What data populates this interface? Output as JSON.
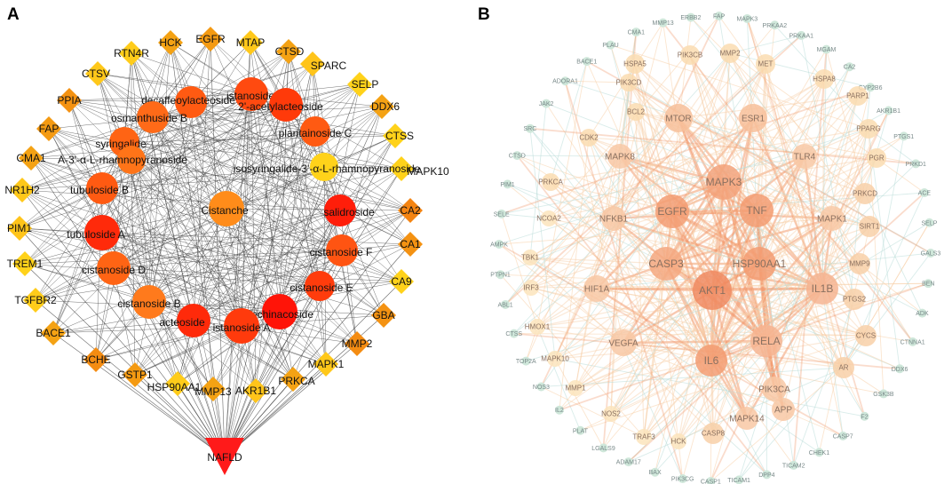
{
  "figure": {
    "panel_a_label": "A",
    "panel_b_label": "B"
  },
  "panel_a": {
    "compounds": [
      {
        "name": "istanoside C",
        "color": "#ff4a10"
      },
      {
        "name": "decaffeoylacteoside",
        "color": "#ff5a12"
      },
      {
        "name": "2'-acetylacteoside",
        "color": "#ff3a0a"
      },
      {
        "name": "osmanthuside B",
        "color": "#ff6a18"
      },
      {
        "name": "plantainoside C",
        "color": "#ff5a12"
      },
      {
        "name": "syringalide",
        "color": "#ff6414"
      },
      {
        "name": "A-3'-α-L-rhamnopyranoside",
        "color": "#ff7418"
      },
      {
        "name": "isosyringalide-3'-α-L-rhamnopyranoside",
        "color": "#ffd21a"
      },
      {
        "name": "tubuloside B",
        "color": "#ff5a12"
      },
      {
        "name": "Cistanche",
        "color": "#ff8c1a"
      },
      {
        "name": "salidroside",
        "color": "#ff1e0a"
      },
      {
        "name": "tubuloside A",
        "color": "#ff2a0a"
      },
      {
        "name": "cistanoside F",
        "color": "#ff5412"
      },
      {
        "name": "cistanoside D",
        "color": "#ff6414"
      },
      {
        "name": "cistanoside E",
        "color": "#ff3c0c"
      },
      {
        "name": "cistanoside B",
        "color": "#ff7a1c"
      },
      {
        "name": "echinacoside",
        "color": "#ff1408"
      },
      {
        "name": "acteoside",
        "color": "#ff2a0a"
      },
      {
        "name": "istanoside A",
        "color": "#ff3a0c"
      }
    ],
    "targets": [
      {
        "name": "HCK",
        "color": "#f4a214"
      },
      {
        "name": "EGFR",
        "color": "#f49a12"
      },
      {
        "name": "MTAP",
        "color": "#ffc81a"
      },
      {
        "name": "RTN4R",
        "color": "#ffcc1a"
      },
      {
        "name": "CTSD",
        "color": "#f4a214"
      },
      {
        "name": "SPARC",
        "color": "#ffc41a"
      },
      {
        "name": "CTSV",
        "color": "#ffc81a"
      },
      {
        "name": "SELP",
        "color": "#ffd21a"
      },
      {
        "name": "PPIA",
        "color": "#f49212"
      },
      {
        "name": "DDX6",
        "color": "#f4a214"
      },
      {
        "name": "FAP",
        "color": "#f49a12"
      },
      {
        "name": "CTSS",
        "color": "#ffd21a"
      },
      {
        "name": "CMA1",
        "color": "#f4a214"
      },
      {
        "name": "MAPK10",
        "color": "#ffd21a"
      },
      {
        "name": "NR1H2",
        "color": "#ffc81a"
      },
      {
        "name": "CA2",
        "color": "#f48412"
      },
      {
        "name": "PIM1",
        "color": "#ffc41a"
      },
      {
        "name": "CA1",
        "color": "#f49212"
      },
      {
        "name": "TREM1",
        "color": "#ffd21a"
      },
      {
        "name": "CA9",
        "color": "#ffd21a"
      },
      {
        "name": "TGFBR2",
        "color": "#ffcc1a"
      },
      {
        "name": "GBA",
        "color": "#f49212"
      },
      {
        "name": "BACE1",
        "color": "#f4a214"
      },
      {
        "name": "MMP2",
        "color": "#f48c12"
      },
      {
        "name": "BCHE",
        "color": "#f48c12"
      },
      {
        "name": "MAPK1",
        "color": "#ffc81a"
      },
      {
        "name": "GSTP1",
        "color": "#f49a12"
      },
      {
        "name": "PRKCA",
        "color": "#f4a214"
      },
      {
        "name": "HSP90AA1",
        "color": "#ffcc1a"
      },
      {
        "name": "MMP13",
        "color": "#f4a214"
      },
      {
        "name": "AKR1B1",
        "color": "#ffc41a"
      }
    ],
    "disease": {
      "name": "NAFLD",
      "color": "#ff1a1a"
    },
    "edge_color": "#444444"
  },
  "panel_b": {
    "hubs": [
      {
        "name": "AKT1",
        "color": "#f08a60"
      },
      {
        "name": "MAPK3",
        "color": "#f3a27a"
      },
      {
        "name": "EGFR",
        "color": "#f39c72"
      },
      {
        "name": "TNF",
        "color": "#f39c72"
      },
      {
        "name": "CASP3",
        "color": "#f4a880"
      },
      {
        "name": "HSP90AA1",
        "color": "#f39c72"
      },
      {
        "name": "IL6",
        "color": "#f39c72"
      },
      {
        "name": "RELA",
        "color": "#f6b490"
      },
      {
        "name": "IL1B",
        "color": "#f6b490"
      },
      {
        "name": "MTOR",
        "color": "#f7bf9a"
      },
      {
        "name": "ESR1",
        "color": "#f7bf9a"
      },
      {
        "name": "VEGFA",
        "color": "#f8c8a4"
      },
      {
        "name": "HIF1A",
        "color": "#f8c8a4"
      },
      {
        "name": "NFKB1",
        "color": "#f8c8a4"
      },
      {
        "name": "MAPK1",
        "color": "#f8c8a4"
      },
      {
        "name": "MAPK8",
        "color": "#f8c8a4"
      },
      {
        "name": "TLR4",
        "color": "#f8c8a4"
      },
      {
        "name": "PIK3CA",
        "color": "#f8c8a4"
      },
      {
        "name": "MAPK14",
        "color": "#f8c8a4"
      },
      {
        "name": "APP",
        "color": "#f8c8a4"
      },
      {
        "name": "CASP8",
        "color": "#f8d0a8"
      },
      {
        "name": "AR",
        "color": "#f8d0a8"
      },
      {
        "name": "CYCS",
        "color": "#f8d0a8"
      },
      {
        "name": "PTGS2",
        "color": "#f8d0a8"
      },
      {
        "name": "MMP9",
        "color": "#f8d0a8"
      },
      {
        "name": "SIRT1",
        "color": "#f8d0a8"
      },
      {
        "name": "PRKCD",
        "color": "#f8d0a8"
      },
      {
        "name": "PGR",
        "color": "#fadcb0"
      },
      {
        "name": "PPARG",
        "color": "#fadcb0"
      },
      {
        "name": "PARP1",
        "color": "#fadcb0"
      },
      {
        "name": "HSPA8",
        "color": "#fadcb0"
      },
      {
        "name": "MET",
        "color": "#fadcb0"
      },
      {
        "name": "MMP2",
        "color": "#fadcb0"
      },
      {
        "name": "PIK3CB",
        "color": "#fadcb0"
      },
      {
        "name": "HSPA5",
        "color": "#fadcb0"
      },
      {
        "name": "PIK3CD",
        "color": "#fadcb0"
      },
      {
        "name": "BCL2",
        "color": "#fadcb0"
      },
      {
        "name": "CDK2",
        "color": "#fadcb0"
      },
      {
        "name": "PRKCA",
        "color": "#fadcb0"
      },
      {
        "name": "NCOA2",
        "color": "#fce4bc"
      },
      {
        "name": "TBK1",
        "color": "#fce4bc"
      },
      {
        "name": "IRF3",
        "color": "#fce4bc"
      },
      {
        "name": "HMOX1",
        "color": "#fce4bc"
      },
      {
        "name": "MAPK10",
        "color": "#fce4bc"
      },
      {
        "name": "MMP1",
        "color": "#fce4bc"
      },
      {
        "name": "NOS2",
        "color": "#fce4bc"
      },
      {
        "name": "TRAF3",
        "color": "#fce4bc"
      },
      {
        "name": "HCK",
        "color": "#fce4bc"
      }
    ],
    "periphery": [
      {
        "name": "MAPK3",
        "color": "#cfe7da"
      },
      {
        "name": "PRKAA2",
        "color": "#cfe7da"
      },
      {
        "name": "PRKAA1",
        "color": "#cfe7da"
      },
      {
        "name": "MGAM",
        "color": "#cfe7da"
      },
      {
        "name": "CA2",
        "color": "#cfe7da"
      },
      {
        "name": "CYP2B6",
        "color": "#cfe7da"
      },
      {
        "name": "AKR1B1",
        "color": "#cfe7da"
      },
      {
        "name": "PTGS1",
        "color": "#cfe7da"
      },
      {
        "name": "PRKD1",
        "color": "#cfe7da"
      },
      {
        "name": "ACE",
        "color": "#cfe7da"
      },
      {
        "name": "SELP",
        "color": "#cfe7da"
      },
      {
        "name": "GALS3",
        "color": "#cfe7da"
      },
      {
        "name": "BEN",
        "color": "#cfe7da"
      },
      {
        "name": "ADK",
        "color": "#cfe7da"
      },
      {
        "name": "CTNNA1",
        "color": "#cfe7da"
      },
      {
        "name": "DDX6",
        "color": "#cfe7da"
      },
      {
        "name": "GSK3B",
        "color": "#cfe7da"
      },
      {
        "name": "F2",
        "color": "#cfe7da"
      },
      {
        "name": "CASP7",
        "color": "#cfe7da"
      },
      {
        "name": "CHEK1",
        "color": "#cfe7da"
      },
      {
        "name": "TICAM2",
        "color": "#cfe7da"
      },
      {
        "name": "DPP4",
        "color": "#cfe7da"
      },
      {
        "name": "TICAM1",
        "color": "#cfe7da"
      },
      {
        "name": "CASP1",
        "color": "#cfe7da"
      },
      {
        "name": "PIK3CG",
        "color": "#cfe7da"
      },
      {
        "name": "BAX",
        "color": "#cfe7da"
      },
      {
        "name": "ADAM17",
        "color": "#cfe7da"
      },
      {
        "name": "LGALS9",
        "color": "#cfe7da"
      },
      {
        "name": "PLAT",
        "color": "#cfe7da"
      },
      {
        "name": "IL2",
        "color": "#cfe7da"
      },
      {
        "name": "NOS3",
        "color": "#cfe7da"
      },
      {
        "name": "TOP2A",
        "color": "#cfe7da"
      },
      {
        "name": "CTSS",
        "color": "#cfe7da"
      },
      {
        "name": "ABL1",
        "color": "#cfe7da"
      },
      {
        "name": "PTPN1",
        "color": "#cfe7da"
      },
      {
        "name": "AMPK",
        "color": "#cfe7da"
      },
      {
        "name": "SELE",
        "color": "#cfe7da"
      },
      {
        "name": "PIM1",
        "color": "#cfe7da"
      },
      {
        "name": "CTSD",
        "color": "#cfe7da"
      },
      {
        "name": "SRC",
        "color": "#cfe7da"
      },
      {
        "name": "JAK2",
        "color": "#cfe7da"
      },
      {
        "name": "ADORA1",
        "color": "#cfe7da"
      },
      {
        "name": "BACE1",
        "color": "#cfe7da"
      },
      {
        "name": "PLAU",
        "color": "#cfe7da"
      },
      {
        "name": "CMA1",
        "color": "#cfe7da"
      },
      {
        "name": "MMP13",
        "color": "#cfe7da"
      },
      {
        "name": "ERBB2",
        "color": "#cfe7da"
      },
      {
        "name": "FAP",
        "color": "#cfe7da"
      }
    ],
    "edge_colors": {
      "strong": "#f29a70",
      "light": "#f7cfa8",
      "cool": "#b9dcd8"
    }
  }
}
